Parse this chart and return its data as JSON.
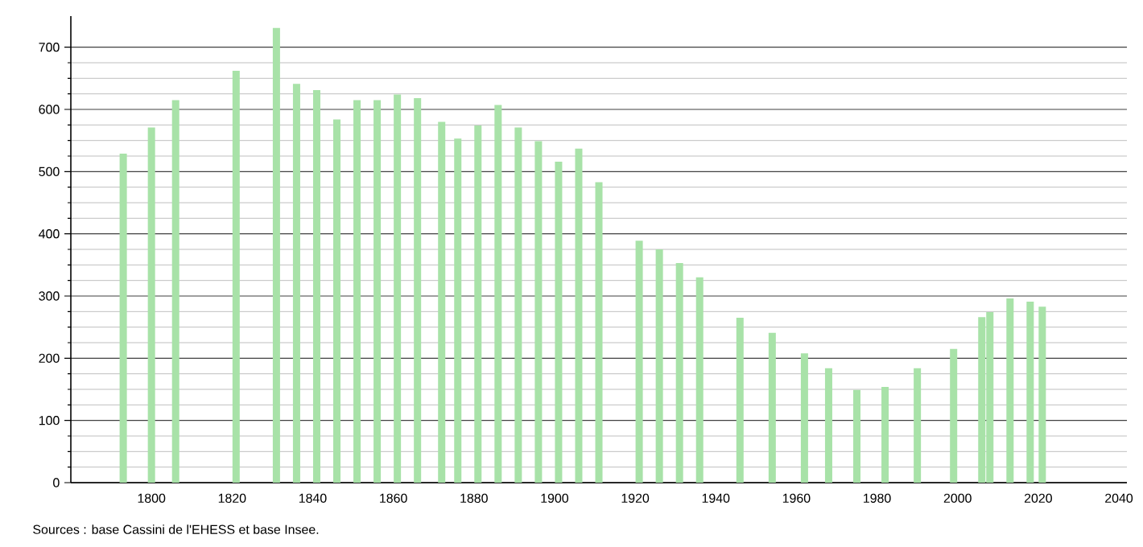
{
  "chart_data": {
    "type": "bar",
    "x": [
      1793,
      1800,
      1806,
      1821,
      1831,
      1836,
      1841,
      1846,
      1851,
      1856,
      1861,
      1866,
      1872,
      1876,
      1881,
      1886,
      1891,
      1896,
      1901,
      1906,
      1911,
      1921,
      1926,
      1931,
      1936,
      1946,
      1954,
      1962,
      1968,
      1975,
      1982,
      1990,
      1999,
      2006,
      2008,
      2013,
      2018,
      2021
    ],
    "values": [
      529,
      571,
      615,
      662,
      731,
      641,
      631,
      584,
      615,
      615,
      624,
      618,
      580,
      553,
      574,
      607,
      571,
      549,
      516,
      537,
      483,
      389,
      375,
      353,
      330,
      265,
      241,
      208,
      184,
      149,
      154,
      184,
      215,
      266,
      274,
      296,
      291,
      283
    ],
    "color": "#a8e2a8",
    "xlim": [
      1780,
      2042
    ],
    "xticks": [
      1800,
      1820,
      1840,
      1860,
      1880,
      1900,
      1920,
      1940,
      1960,
      1980,
      2000,
      2020,
      2040
    ],
    "ylim": [
      0,
      750
    ],
    "yticks": [
      0,
      100,
      200,
      300,
      400,
      500,
      600,
      700
    ],
    "grid": "y",
    "annotations": [
      "Sources : base Cassini de l'EHESS et base Insee."
    ]
  }
}
